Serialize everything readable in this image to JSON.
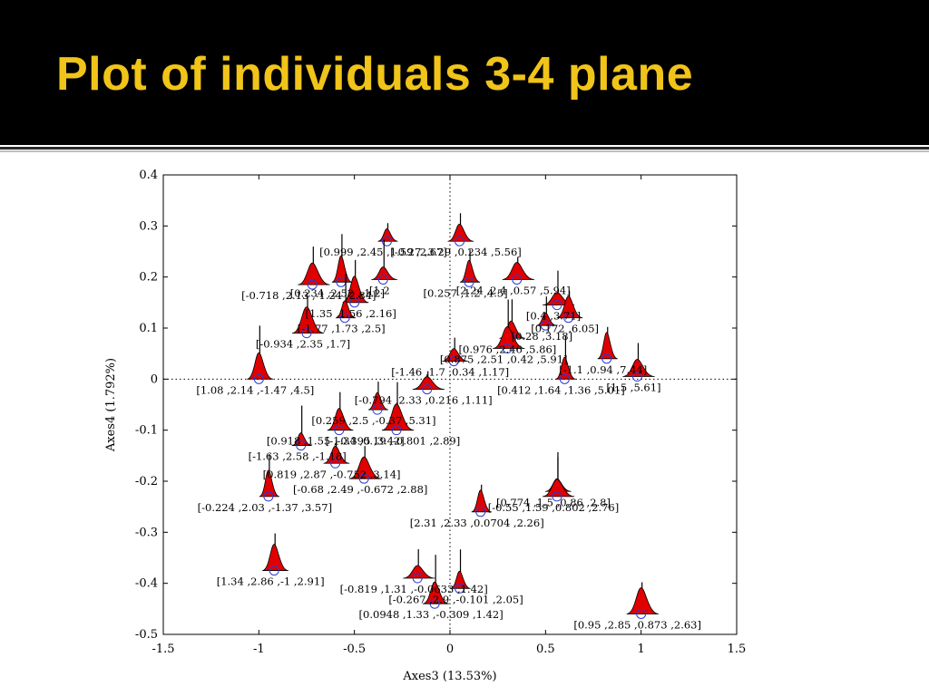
{
  "slide": {
    "title": "Plot of individuals 3-4 plane",
    "colors": {
      "title_bg": "#000000",
      "title_fg": "#f0c419",
      "density_fill": "#e00000",
      "marker": "#2b3bd6"
    }
  },
  "chart_data": {
    "type": "scatter",
    "title": "",
    "xlabel": "Axes3 (13.53%)",
    "ylabel": "Axes4 (1.792%)",
    "xlim": [
      -1.5,
      1.5
    ],
    "ylim": [
      -0.5,
      0.4
    ],
    "xticks": [
      -1.5,
      -1,
      -0.5,
      0,
      0.5,
      1,
      1.5
    ],
    "yticks": [
      -0.5,
      -0.4,
      -0.3,
      -0.2,
      -0.1,
      0,
      0.1,
      0.2,
      0.3,
      0.4
    ],
    "xtick_labels": [
      "-1.5",
      "-1",
      "-0.5",
      "0",
      "0.5",
      "1",
      "1.5"
    ],
    "ytick_labels": [
      "-0.5",
      "-0.4",
      "-0.3",
      "-0.2",
      "-0.1",
      "0",
      "0.1",
      "0.2",
      "0.3",
      "0.4"
    ],
    "grid": false,
    "zero_lines": true,
    "marker_style": "open-circle with red density curve",
    "points": [
      {
        "x": -0.33,
        "y": 0.27,
        "label": "[0.999 ,2.45 ,1.59 ,2.67]"
      },
      {
        "x": 0.05,
        "y": 0.27,
        "label": "[-0.27 ,3.29 ,0.234 ,5.56]"
      },
      {
        "x": -0.72,
        "y": 0.185,
        "label": "[-0.718 ,2.13 ,-1.24 ,2.84]"
      },
      {
        "x": -0.57,
        "y": 0.19,
        "label": "[0.234 ,2.52 ,-1.2]"
      },
      {
        "x": -0.35,
        "y": 0.195,
        "label": "[1.2"
      },
      {
        "x": 0.35,
        "y": 0.195,
        "label": "[2.24 ,2.4 ,0.57 ,5.94]"
      },
      {
        "x": 0.1,
        "y": 0.19,
        "label": "[0.257 ,1.2 ,4.5]"
      },
      {
        "x": -0.5,
        "y": 0.15,
        "label": "[1.35 ,1.56 ,2.16]"
      },
      {
        "x": 0.56,
        "y": 0.145,
        "label": "[0.4 ,3.71]"
      },
      {
        "x": -0.55,
        "y": 0.12,
        "label": "[-1.77 ,1.73 ,2.5]"
      },
      {
        "x": 0.62,
        "y": 0.12,
        "label": "[0.172 ,6.05]"
      },
      {
        "x": -0.75,
        "y": 0.09,
        "label": "[-0.934 ,2.35 ,1.7]"
      },
      {
        "x": 0.5,
        "y": 0.105,
        "label": "[0.28 ,3.18]"
      },
      {
        "x": 0.32,
        "y": 0.08,
        "label": "[0.976 ,2.46 ,5.86]"
      },
      {
        "x": 0.3,
        "y": 0.06,
        "label": "[0.875 ,2.51 ,0.42 ,5.91]"
      },
      {
        "x": 0.82,
        "y": 0.04,
        "label": "[-1.1 ,0.94 ,7.44]"
      },
      {
        "x": 0.02,
        "y": 0.035,
        "label": "[-1.46 ,1.7 ,0.34 ,1.17]"
      },
      {
        "x": 0.98,
        "y": 0.005,
        "label": "[1.5 ,5.61]"
      },
      {
        "x": 0.6,
        "y": 0.0,
        "label": "[0.412 ,1.64 ,1.36 ,5.01]"
      },
      {
        "x": -1.0,
        "y": 0.0,
        "label": "[1.08 ,2.14 ,-1.47 ,4.5]"
      },
      {
        "x": -0.12,
        "y": -0.02,
        "label": "[-0.794 ,2.33 ,0.216 ,1.11]"
      },
      {
        "x": -0.38,
        "y": -0.06,
        "label": "[0.259 ,2.5 ,-0.37 ,5.31]"
      },
      {
        "x": -0.58,
        "y": -0.1,
        "label": "[0.918 ,1.55 ,-0.395 ,3.42]"
      },
      {
        "x": -0.28,
        "y": -0.1,
        "label": "[-1.34 ,0.19 ,-0.801 ,2.89]"
      },
      {
        "x": -0.78,
        "y": -0.13,
        "label": "[-1.63 ,2.58 ,-1.18]"
      },
      {
        "x": -0.6,
        "y": -0.165,
        "label": "[0.819 ,2.87 ,-0.752 ,3.14]"
      },
      {
        "x": -0.45,
        "y": -0.195,
        "label": "[-0.68 ,2.49 ,-0.672 ,2.88]"
      },
      {
        "x": -0.95,
        "y": -0.23,
        "label": "[-0.224 ,2.03 ,-1.37 ,3.57]"
      },
      {
        "x": 0.56,
        "y": -0.22,
        "label": "[0.774 ,1.5 ,0.86 ,2.8]"
      },
      {
        "x": 0.56,
        "y": -0.23,
        "label": "[-0.55 ,1.59 ,0.802 ,2.76]"
      },
      {
        "x": 0.16,
        "y": -0.26,
        "label": "[2.31 ,2.33 ,0.0704 ,2.26]"
      },
      {
        "x": -0.92,
        "y": -0.375,
        "label": "[1.34 ,2.86 ,-1 ,2.91]"
      },
      {
        "x": -0.17,
        "y": -0.39,
        "label": "[-0.819 ,1.31 ,-0.0633 ,1.42]"
      },
      {
        "x": 0.05,
        "y": -0.41,
        "label": "[-0.267 ,2.9 ,-0.101 ,2.05]"
      },
      {
        "x": -0.08,
        "y": -0.44,
        "label": "[0.0948 ,1.33 ,-0.309 ,1.42]"
      },
      {
        "x": 1.0,
        "y": -0.46,
        "label": "[0.95 ,2.85 ,0.873 ,2.63]"
      }
    ]
  }
}
